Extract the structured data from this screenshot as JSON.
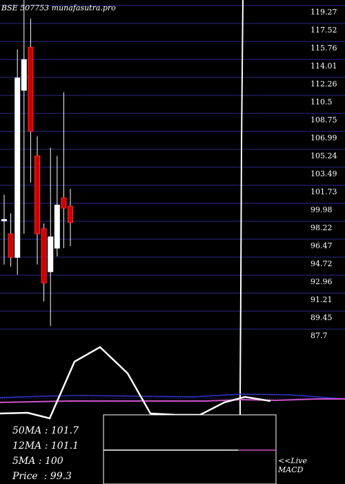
{
  "header": {
    "title": "BSE 507753 munafasutra.pro"
  },
  "colors": {
    "background": "#000000",
    "grid": "#2b2b8a",
    "up": "#ffffff",
    "down": "#cc0000",
    "macd_signal": "#cc55cc",
    "histogram": "#3333cc"
  },
  "chart_data": {
    "type": "candlestick",
    "y_ticks": [
      "119.27",
      "117.52",
      "115.76",
      "114.01",
      "112.26",
      "110.5",
      "108.75",
      "106.99",
      "105.24",
      "103.49",
      "101.73",
      "99.98",
      "98.22",
      "96.47",
      "94.72",
      "92.96",
      "91.21",
      "89.45",
      "87.7"
    ],
    "ylim": [
      87.7,
      119.27
    ],
    "candles": [
      {
        "open": 98.4,
        "high": 100.8,
        "low": 94.0,
        "close": 98.4
      },
      {
        "open": 97.0,
        "high": 99.0,
        "low": 93.8,
        "close": 94.7
      },
      {
        "open": 94.7,
        "high": 115.0,
        "low": 93.0,
        "close": 112.2
      },
      {
        "open": 111.0,
        "high": 120.0,
        "low": 97.0,
        "close": 114.0
      },
      {
        "open": 115.2,
        "high": 118.0,
        "low": 102.0,
        "close": 107.0
      },
      {
        "open": 104.6,
        "high": 106.5,
        "low": 94.0,
        "close": 97.0
      },
      {
        "open": 97.5,
        "high": 98.0,
        "low": 90.4,
        "close": 92.2
      },
      {
        "open": 93.3,
        "high": 105.4,
        "low": 88.0,
        "close": 96.7
      },
      {
        "open": 95.6,
        "high": 104.6,
        "low": 94.8,
        "close": 99.8
      },
      {
        "open": 100.5,
        "high": 110.8,
        "low": 95.6,
        "close": 99.5
      },
      {
        "open": 99.7,
        "high": 101.4,
        "low": 95.8,
        "close": 98.1
      }
    ],
    "moving_averages": [
      {
        "name": "50MA",
        "value": "101.7"
      },
      {
        "name": "12MA",
        "value": "101.1"
      },
      {
        "name": "5MA",
        "value": "100"
      },
      {
        "name": "Price",
        "value": "99.3"
      }
    ],
    "macd_label": "<<Live\nMACD"
  }
}
